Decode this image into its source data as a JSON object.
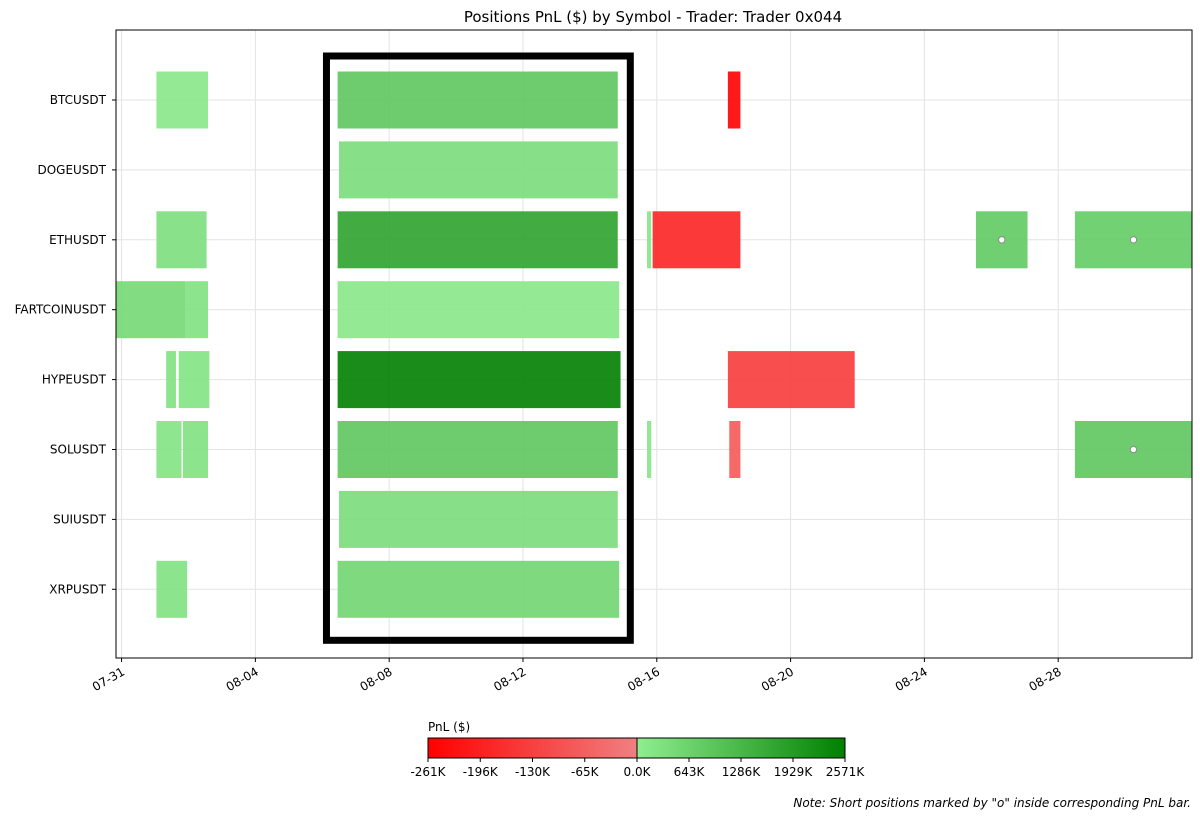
{
  "chart_data": {
    "type": "gantt-bar",
    "title": "Positions PnL ($) by Symbol - Trader: Trader 0x044",
    "x_axis": {
      "type": "date",
      "range": [
        "2025-07-30T20:00",
        "2025-09-01T00:00"
      ],
      "ticks": [
        {
          "date": "2025-07-31",
          "label": "07-31"
        },
        {
          "date": "2025-08-04",
          "label": "08-04"
        },
        {
          "date": "2025-08-08",
          "label": "08-08"
        },
        {
          "date": "2025-08-12",
          "label": "08-12"
        },
        {
          "date": "2025-08-16",
          "label": "08-16"
        },
        {
          "date": "2025-08-20",
          "label": "08-20"
        },
        {
          "date": "2025-08-24",
          "label": "08-24"
        },
        {
          "date": "2025-08-28",
          "label": "08-28"
        }
      ],
      "grid": true
    },
    "symbols": [
      "BTCUSDT",
      "DOGEUSDT",
      "ETHUSDT",
      "FARTCOINUSDT",
      "HYPEUSDT",
      "SOLUSDT",
      "SUIUSDT",
      "XRPUSDT"
    ],
    "positions": [
      {
        "symbol": "BTCUSDT",
        "start": "2025-08-01T01:00",
        "end": "2025-08-02T14:00",
        "pnl_k": 150,
        "short": false
      },
      {
        "symbol": "BTCUSDT",
        "start": "2025-08-06T11:00",
        "end": "2025-08-14T20:00",
        "pnl_k": 900,
        "short": false
      },
      {
        "symbol": "BTCUSDT",
        "start": "2025-08-18T03:00",
        "end": "2025-08-18T12:00",
        "pnl_k": -261,
        "short": false
      },
      {
        "symbol": "DOGEUSDT",
        "start": "2025-08-06T12:00",
        "end": "2025-08-14T20:00",
        "pnl_k": 400,
        "short": false
      },
      {
        "symbol": "ETHUSDT",
        "start": "2025-08-01T01:00",
        "end": "2025-08-02T13:00",
        "pnl_k": 350,
        "short": false
      },
      {
        "symbol": "ETHUSDT",
        "start": "2025-08-06T11:00",
        "end": "2025-08-14T20:00",
        "pnl_k": 1750,
        "short": false
      },
      {
        "symbol": "ETHUSDT",
        "start": "2025-08-15T17:00",
        "end": "2025-08-15T20:00",
        "pnl_k": 200,
        "short": false
      },
      {
        "symbol": "ETHUSDT",
        "start": "2025-08-15T21:00",
        "end": "2025-08-18T12:00",
        "pnl_k": -190,
        "short": false
      },
      {
        "symbol": "ETHUSDT",
        "start": "2025-08-25T13:00",
        "end": "2025-08-27T02:00",
        "pnl_k": 850,
        "short": true
      },
      {
        "symbol": "ETHUSDT",
        "start": "2025-08-28T12:00",
        "end": "2025-09-01T00:00",
        "pnl_k": 800,
        "short": true
      },
      {
        "symbol": "FARTCOINUSDT",
        "start": "2025-07-30T20:00",
        "end": "2025-08-01T22:00",
        "pnl_k": 500,
        "short": false
      },
      {
        "symbol": "FARTCOINUSDT",
        "start": "2025-08-01T22:00",
        "end": "2025-08-02T14:00",
        "pnl_k": 300,
        "short": false
      },
      {
        "symbol": "FARTCOINUSDT",
        "start": "2025-08-06T11:00",
        "end": "2025-08-14T21:00",
        "pnl_k": 150,
        "short": false
      },
      {
        "symbol": "HYPEUSDT",
        "start": "2025-08-01T08:00",
        "end": "2025-08-01T15:00",
        "pnl_k": 300,
        "short": false
      },
      {
        "symbol": "HYPEUSDT",
        "start": "2025-08-01T17:00",
        "end": "2025-08-02T15:00",
        "pnl_k": 250,
        "short": false
      },
      {
        "symbol": "HYPEUSDT",
        "start": "2025-08-06T11:00",
        "end": "2025-08-14T22:00",
        "pnl_k": 2571,
        "short": false
      },
      {
        "symbol": "HYPEUSDT",
        "start": "2025-08-18T03:00",
        "end": "2025-08-21T22:00",
        "pnl_k": -140,
        "short": false
      },
      {
        "symbol": "SOLUSDT",
        "start": "2025-08-01T01:00",
        "end": "2025-08-01T19:00",
        "pnl_k": 250,
        "short": false
      },
      {
        "symbol": "SOLUSDT",
        "start": "2025-08-01T20:00",
        "end": "2025-08-02T14:00",
        "pnl_k": 300,
        "short": false
      },
      {
        "symbol": "SOLUSDT",
        "start": "2025-08-06T11:00",
        "end": "2025-08-14T20:00",
        "pnl_k": 900,
        "short": false
      },
      {
        "symbol": "SOLUSDT",
        "start": "2025-08-15T17:00",
        "end": "2025-08-15T20:00",
        "pnl_k": 200,
        "short": false
      },
      {
        "symbol": "SOLUSDT",
        "start": "2025-08-18T04:00",
        "end": "2025-08-18T12:00",
        "pnl_k": -80,
        "short": false
      },
      {
        "symbol": "SOLUSDT",
        "start": "2025-08-28T12:00",
        "end": "2025-09-01T00:00",
        "pnl_k": 900,
        "short": true
      },
      {
        "symbol": "SUIUSDT",
        "start": "2025-08-06T12:00",
        "end": "2025-08-14T20:00",
        "pnl_k": 400,
        "short": false
      },
      {
        "symbol": "XRPUSDT",
        "start": "2025-08-01T01:00",
        "end": "2025-08-01T23:00",
        "pnl_k": 300,
        "short": false
      },
      {
        "symbol": "XRPUSDT",
        "start": "2025-08-06T11:00",
        "end": "2025-08-14T21:00",
        "pnl_k": 550,
        "short": false
      }
    ],
    "highlight_box": {
      "start": "2025-08-06T03:00",
      "end": "2025-08-15T05:00",
      "symbols": [
        "BTCUSDT",
        "XRPUSDT"
      ]
    },
    "colorbar": {
      "label": "PnL ($)",
      "ticks": [
        "-261K",
        "-196K",
        "-130K",
        "-65K",
        "0.0K",
        "643K",
        "1286K",
        "1929K",
        "2571K"
      ],
      "min_k": -261,
      "max_k": 2571,
      "negative_colors": [
        "#ff0000",
        "#f08080"
      ],
      "positive_colors": [
        "#90ee90",
        "#008000"
      ]
    },
    "note": "Note: Short positions marked by \"o\" inside corresponding PnL bar."
  }
}
